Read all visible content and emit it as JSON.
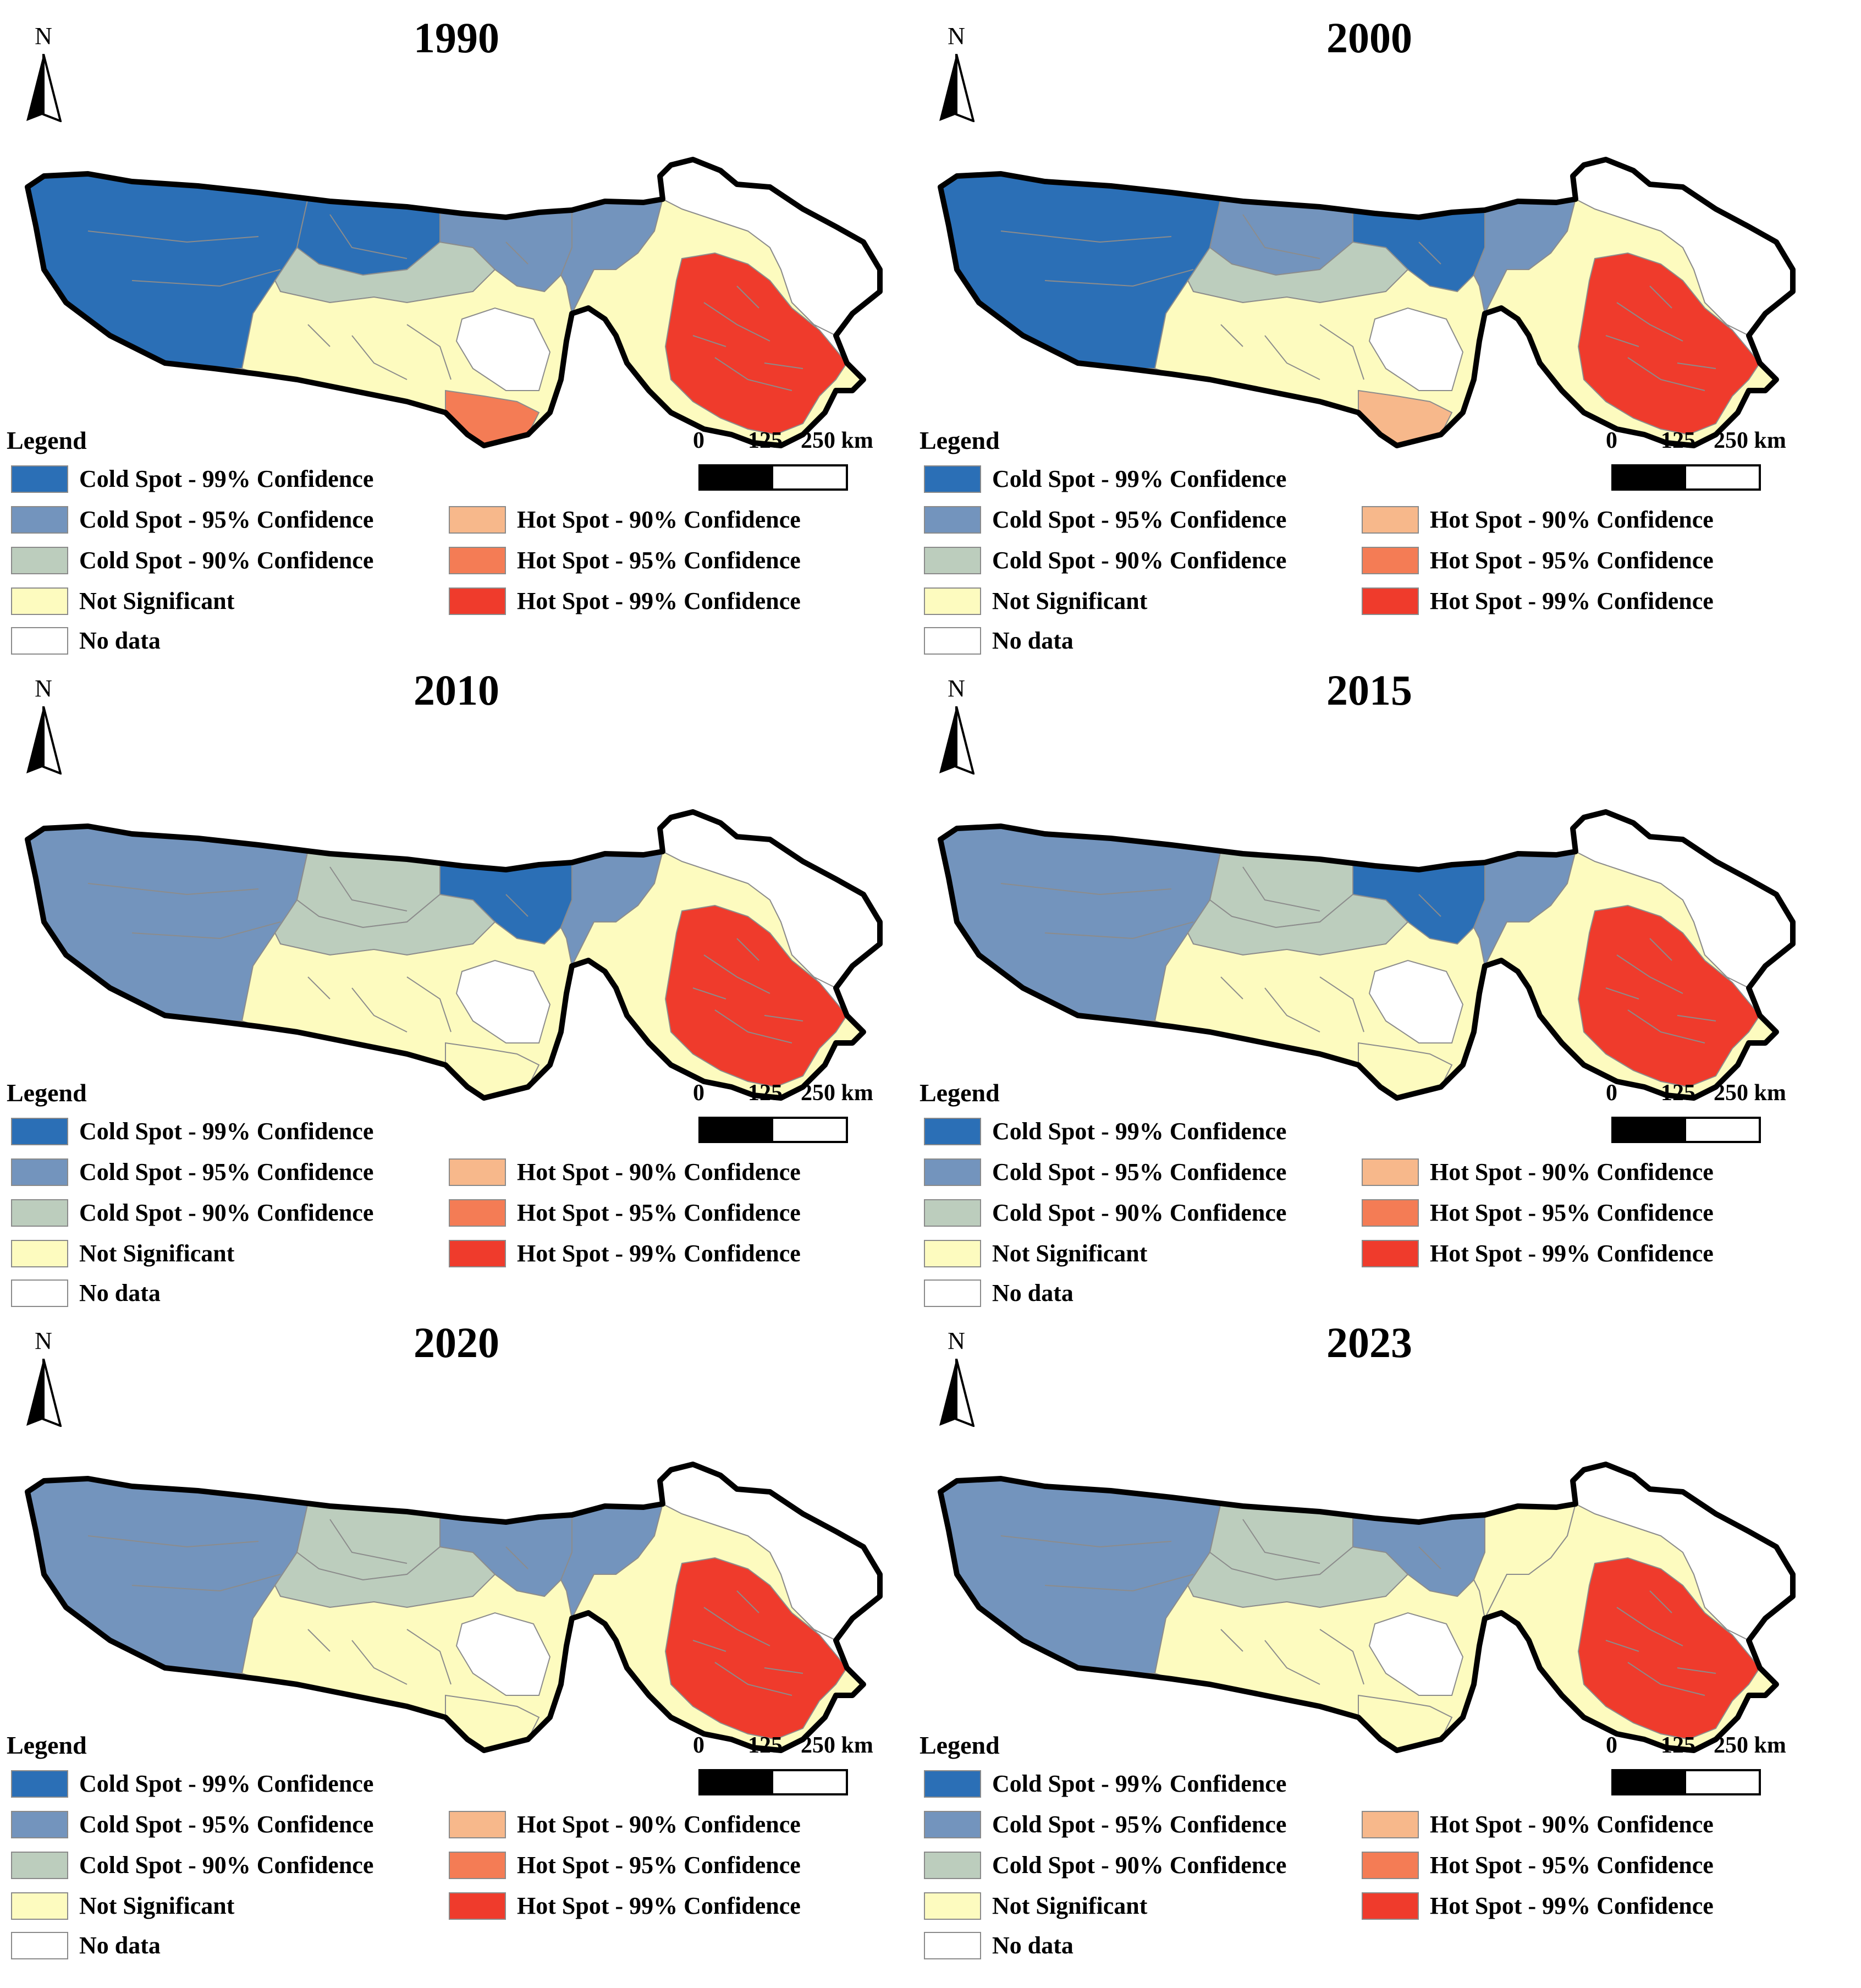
{
  "legend": {
    "title": "Legend",
    "items": [
      {
        "key": "cold99",
        "label": "Cold Spot - 99% Confidence",
        "color": "#2b6fb6"
      },
      {
        "key": "cold95",
        "label": "Cold Spot - 95% Confidence",
        "color": "#7394bd"
      },
      {
        "key": "cold90",
        "label": "Cold Spot - 90% Confidence",
        "color": "#bccdbd"
      },
      {
        "key": "ns",
        "label": "Not Significant",
        "color": "#fdfbbf"
      },
      {
        "key": "nodata",
        "label": "No data",
        "color": "#ffffff"
      },
      {
        "key": "hot90",
        "label": "Hot Spot - 90% Confidence",
        "color": "#f7b88b"
      },
      {
        "key": "hot95",
        "label": "Hot Spot - 95% Confidence",
        "color": "#f47c55"
      },
      {
        "key": "hot99",
        "label": "Hot Spot - 99% Confidence",
        "color": "#ef3b2c"
      }
    ]
  },
  "north_label": "N",
  "scale": {
    "labels": [
      "0",
      "125",
      "250 km"
    ]
  },
  "panels": [
    {
      "year": "1990",
      "west": "cold99",
      "north_central": "cold99",
      "east_central": "cold95",
      "cold90_zone": "cold90",
      "south_central": "ns",
      "south_tail": "hot95",
      "east": "hot99",
      "east_ring": "ns",
      "east_cold": "cold95"
    },
    {
      "year": "2000",
      "west": "cold99",
      "north_central": "cold95",
      "east_central": "cold99",
      "cold90_zone": "cold90",
      "south_central": "ns",
      "south_tail": "hot90",
      "east": "hot99",
      "east_ring": "ns",
      "east_cold": "cold95"
    },
    {
      "year": "2010",
      "west": "cold95",
      "north_central": "cold90",
      "east_central": "cold99",
      "cold90_zone": "cold90",
      "south_central": "ns",
      "south_tail": "ns",
      "east": "hot99",
      "east_ring": "ns",
      "east_cold": "cold95"
    },
    {
      "year": "2015",
      "west": "cold95",
      "north_central": "cold90",
      "east_central": "cold99",
      "cold90_zone": "cold90",
      "south_central": "ns",
      "south_tail": "ns",
      "east": "hot99",
      "east_ring": "ns",
      "east_cold": "cold95"
    },
    {
      "year": "2020",
      "west": "cold95",
      "north_central": "cold90",
      "east_central": "cold95",
      "cold90_zone": "cold90",
      "south_central": "ns",
      "south_tail": "ns",
      "east": "hot99",
      "east_ring": "ns",
      "east_cold": "cold95"
    },
    {
      "year": "2023",
      "west": "cold95",
      "north_central": "cold90",
      "east_central": "cold95",
      "cold90_zone": "cold90",
      "south_central": "ns",
      "south_tail": "ns",
      "east": "hot99",
      "east_ring": "ns",
      "east_cold": "ns"
    }
  ]
}
